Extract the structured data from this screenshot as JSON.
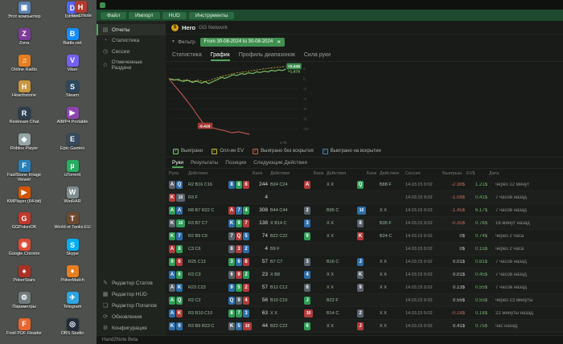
{
  "desktop": {
    "icons": [
      {
        "label": "Этот компьютер",
        "glyph": "▣",
        "color": "#5b84b1"
      },
      {
        "label": "Discord",
        "glyph": "D",
        "color": "#5865f2"
      },
      {
        "label": "Zona",
        "glyph": "Z",
        "color": "#7d3c98"
      },
      {
        "label": "Battle.net",
        "glyph": "B",
        "color": "#148eff"
      },
      {
        "label": "Online Radio",
        "glyph": "♫",
        "color": "#e67e22"
      },
      {
        "label": "Viber",
        "glyph": "V",
        "color": "#7360f2"
      },
      {
        "label": "Hearthstone",
        "glyph": "H",
        "color": "#c8963e"
      },
      {
        "label": "Steam",
        "glyph": "S",
        "color": "#2a475e"
      },
      {
        "label": "Restream Chat",
        "glyph": "R",
        "color": "#2c3e50"
      },
      {
        "label": "AIMP4 Portable",
        "glyph": "▶",
        "color": "#8e44ad"
      },
      {
        "label": "Roblox Player",
        "glyph": "◆",
        "color": "#95a5a6"
      },
      {
        "label": "Epic Games",
        "glyph": "E",
        "color": "#34495e"
      },
      {
        "label": "FastStone Image Viewer",
        "glyph": "F",
        "color": "#2980b9"
      },
      {
        "label": "uTorrent",
        "glyph": "µ",
        "color": "#27ae60"
      },
      {
        "label": "KMPlayer (64-bit)",
        "glyph": "▶",
        "color": "#d35400"
      },
      {
        "label": "WinRAR",
        "glyph": "W",
        "color": "#7f8c8d"
      },
      {
        "label": "GGPokerOK",
        "glyph": "G",
        "color": "#c0392b"
      },
      {
        "label": "World of Tanks EU",
        "glyph": "T",
        "color": "#6e4a2f"
      },
      {
        "label": "Google Chrome",
        "glyph": "◉",
        "color": "#dd4b39"
      },
      {
        "label": "Skype",
        "glyph": "S",
        "color": "#00aff0"
      },
      {
        "label": "PokerStars",
        "glyph": "♠",
        "color": "#a93226"
      },
      {
        "label": "PokerMatch",
        "glyph": "♦",
        "color": "#e67e22"
      },
      {
        "label": "Параметры",
        "glyph": "⚙",
        "color": "#707b7c"
      },
      {
        "label": "Telegram",
        "glyph": "✈",
        "color": "#2ca5e0"
      },
      {
        "label": "Foxit PDF Reader",
        "glyph": "F",
        "color": "#e8662d"
      },
      {
        "label": "OBS Studio",
        "glyph": "◎",
        "color": "#1f2b38"
      }
    ],
    "extra_icon": {
      "label": "Hand2Note",
      "glyph": "H",
      "color": "#b03a2e"
    }
  },
  "app": {
    "icons": {
      "coin": "$",
      "filter": "▼",
      "close": "✕",
      "check": "✓",
      "plus": "+"
    },
    "menu": {
      "items": [
        "Файл",
        "Импорт",
        "HUD",
        "Инструменты"
      ]
    },
    "sidebar": {
      "top_items": [
        {
          "label": "Отчеты",
          "icon": "▤",
          "active": true
        },
        {
          "label": "Статистика",
          "icon": "◔",
          "active": false
        },
        {
          "label": "Сессии",
          "icon": "◷",
          "active": false
        },
        {
          "label": "Отмеченные Раздачи",
          "icon": "✩",
          "active": false
        }
      ],
      "bottom_items": [
        {
          "label": "Редактор Статов",
          "icon": "✎",
          "active": false
        },
        {
          "label": "Редактор HUD",
          "icon": "▦",
          "active": false
        },
        {
          "label": "Редактор Попапов",
          "icon": "❏",
          "active": false
        },
        {
          "label": "Обновления",
          "icon": "⟳",
          "active": false
        },
        {
          "label": "Конфигурация",
          "icon": "⚙",
          "active": false
        }
      ]
    },
    "player": {
      "name": "Hero",
      "network": "GG Network"
    },
    "filter": {
      "button_label": "Фильтр",
      "date_range": "From 30-08-2024 to 30-08-2024"
    },
    "tabs": [
      {
        "label": "Статистика",
        "active": false
      },
      {
        "label": "График",
        "active": true
      },
      {
        "label": "Профиль диапазонов",
        "active": false
      },
      {
        "label": "Сила руки",
        "active": false
      }
    ],
    "chart": {
      "type": "line",
      "x_end_label": "2.7k",
      "y_ticks": [
        2,
        0,
        -2,
        -4,
        -6,
        -8,
        -10
      ],
      "ylim": [
        -13,
        3
      ],
      "series": [
        {
          "name": "Выиграно",
          "color": "#7ec36a",
          "dash": false,
          "width": 1.1,
          "points": [
            [
              0,
              0
            ],
            [
              4,
              -0.3
            ],
            [
              8,
              -0.15
            ],
            [
              12,
              -0.55
            ],
            [
              16,
              -0.35
            ],
            [
              20,
              -0.75
            ],
            [
              24,
              -0.5
            ],
            [
              28,
              -0.9
            ],
            [
              31,
              -0.6
            ],
            [
              34,
              -1.0
            ],
            [
              38,
              -0.55
            ],
            [
              42,
              -0.15
            ],
            [
              45,
              0.25
            ],
            [
              48,
              0.05
            ],
            [
              52,
              0.45
            ],
            [
              55,
              0.8
            ],
            [
              58,
              0.6
            ],
            [
              62,
              1.0
            ],
            [
              65,
              0.85
            ],
            [
              68,
              1.15
            ],
            [
              72,
              1.0
            ],
            [
              75,
              1.35
            ],
            [
              78,
              1.2
            ],
            [
              82,
              1.5
            ],
            [
              85,
              1.35
            ],
            [
              88,
              1.65
            ],
            [
              91,
              1.5
            ],
            [
              94,
              1.75
            ],
            [
              97,
              1.6
            ],
            [
              100,
              1.878
            ]
          ]
        },
        {
          "name": "Олл-ин EV",
          "color": "#c9b43a",
          "dash": true,
          "width": 0.8,
          "points": [
            [
              0,
              0
            ],
            [
              5,
              -0.2
            ],
            [
              10,
              -0.45
            ],
            [
              15,
              -0.2
            ],
            [
              20,
              -0.55
            ],
            [
              25,
              -0.3
            ],
            [
              30,
              -0.65
            ],
            [
              35,
              -0.35
            ],
            [
              40,
              0.05
            ],
            [
              45,
              0.45
            ],
            [
              50,
              0.7
            ],
            [
              55,
              1.0
            ],
            [
              60,
              1.2
            ],
            [
              65,
              1.35
            ],
            [
              70,
              1.55
            ],
            [
              75,
              1.7
            ],
            [
              80,
              1.9
            ],
            [
              85,
              2.05
            ],
            [
              90,
              2.2
            ],
            [
              95,
              2.3
            ],
            [
              100,
              2.445
            ]
          ]
        },
        {
          "name": "Выиграно без вскрытия",
          "color": "#c95a50",
          "dash": false,
          "width": 1,
          "points": [
            [
              0,
              0
            ],
            [
              4,
              -1.2
            ],
            [
              8,
              -2.3
            ],
            [
              12,
              -3.4
            ],
            [
              16,
              -4.6
            ],
            [
              20,
              -5.8
            ],
            [
              24,
              -7.2
            ],
            [
              28,
              -8.5
            ],
            [
              31,
              -9.428
            ],
            [
              36,
              -9.7
            ],
            [
              42,
              -10.1
            ],
            [
              48,
              -10.4
            ],
            [
              54,
              -10.8
            ],
            [
              60,
              -10.6
            ],
            [
              65,
              -10.9
            ],
            [
              69,
              -11.1
            ]
          ]
        }
      ],
      "badges": [
        {
          "text": "+2.445",
          "x": 100,
          "v": 2.445,
          "style": "pill",
          "bg": "#3f8f4f",
          "fg": "#ffffff"
        },
        {
          "text": "+1.878",
          "x": 100,
          "v": 1.45,
          "style": "text",
          "fg": "#7ec36a"
        },
        {
          "text": "-9.428",
          "x": 31,
          "v": -9.428,
          "style": "pill",
          "bg": "#a33a32",
          "fg": "#ffffff"
        }
      ]
    },
    "legend": [
      {
        "label": "Выиграно",
        "color": "#7ec36a"
      },
      {
        "label": "Олл-ин EV",
        "color": "#c9b43a"
      },
      {
        "label": "Выиграно без вскрытия",
        "color": "#c95a50"
      },
      {
        "label": "Выиграно на вскрытии",
        "color": "#4a7fb5"
      }
    ],
    "table": {
      "tabs": [
        {
          "label": "Руки",
          "active": true
        },
        {
          "label": "Результаты",
          "active": false
        },
        {
          "label": "Позиции",
          "active": false
        },
        {
          "label": "Следующие Действия",
          "active": false
        }
      ],
      "headers": [
        "Рука",
        "Действия",
        "",
        "Банк",
        "Действия",
        "",
        "Банк",
        "Действия",
        "",
        "Банк",
        "Действия",
        "Сессия",
        "Выигрыш",
        "EV$",
        "Дата"
      ],
      "rows": [
        {
          "hole": [
            "As",
            "Qd"
          ],
          "pre": "R2 B16 C16",
          "flop": [
            "8d",
            "8c",
            "6h"
          ],
          "pot1": "244",
          "facts": "B24 C24",
          "turn": "Ah",
          "pot2": "",
          "tacts": "X X",
          "river": "Qc",
          "pot3": "",
          "racts": "B88 F",
          "sess": "14.03.15 9:02",
          "win": "-2.38$",
          "ev": "1.21$",
          "ago": "через 12 минут"
        },
        {
          "hole": [
            "Kh",
            "10s"
          ],
          "pre": "R3 F",
          "flop": [],
          "pot1": "4",
          "facts": "",
          "turn": "",
          "pot2": "",
          "tacts": "",
          "river": "",
          "pot3": "",
          "racts": "",
          "sess": "14.03.15 9:02",
          "win": "-1.08$",
          "ev": "0.41$",
          "ago": "7 часов назад"
        },
        {
          "hole": [
            "Ac",
            "Ad"
          ],
          "pre": "R8 B7 R22 C",
          "flop": [
            "Ah",
            "7d",
            "4c"
          ],
          "pot1": "308",
          "facts": "B44 C44",
          "turn": "2s",
          "pot2": "",
          "tacts": "B95 C",
          "river": "10d",
          "pot3": "",
          "racts": "X X",
          "sess": "14.03.15 9:02",
          "win": "-1.45$",
          "ev": "6.17$",
          "ago": "7 часов назад"
        },
        {
          "hole": [
            "Ks",
            "10c"
          ],
          "pre": "R3 B7 C7",
          "flop": [
            "Kd",
            "9c",
            "7h"
          ],
          "pot1": "138",
          "facts": "X B14 C",
          "turn": "3d",
          "pot2": "",
          "tacts": "X X",
          "river": "8s",
          "pot3": "",
          "racts": "B35 F",
          "sess": "14.03.15 9:02",
          "win": "-0.35$",
          "ev": "0.76$",
          "ago": "16 минут назад"
        },
        {
          "hole": [
            "Kc",
            "7d"
          ],
          "pre": "R2 B9 C9",
          "flop": [
            "7s",
            "Qh",
            "5d"
          ],
          "pot1": "74",
          "facts": "B22 C22",
          "turn": "9c",
          "pot2": "",
          "tacts": "X X",
          "river": "Kh",
          "pot3": "",
          "racts": "B24 C",
          "sess": "14.03.15 9:02",
          "win": "0$",
          "ev": "0.74$",
          "ago": "через 2 часа"
        },
        {
          "hole": [
            "Ah",
            "8c"
          ],
          "pre": "C3 C6",
          "flop": [
            "8s",
            "3h",
            "2d"
          ],
          "pot1": "4",
          "facts": "B9 F",
          "turn": "",
          "pot2": "",
          "tacts": "",
          "river": "",
          "pot3": "",
          "racts": "",
          "sess": "14.03.15 9:02",
          "win": "0$",
          "ev": "0.15$",
          "ago": "через 2 часа"
        },
        {
          "hole": [
            "9c",
            "6h"
          ],
          "pre": "R25 C13",
          "flop": [
            "3c",
            "6d",
            "8h"
          ],
          "pot1": "57",
          "facts": "B7 C7",
          "turn": "3s",
          "pot2": "",
          "tacts": "B16 C",
          "river": "Jd",
          "pot3": "",
          "racts": "X X",
          "sess": "14.03.15 9:02",
          "win": "0.01$",
          "ev": "0.81$",
          "ago": "7 часов назад"
        },
        {
          "hole": [
            "Ad",
            "6c"
          ],
          "pre": "R3 C3",
          "flop": [
            "6s",
            "9h",
            "2c"
          ],
          "pot1": "23",
          "facts": "X B8",
          "turn": "4d",
          "pot2": "",
          "tacts": "X X",
          "river": "Ks",
          "pot3": "",
          "racts": "X X",
          "sess": "14.03.15 9:02",
          "win": "0.01$",
          "ev": "0.45$",
          "ago": "7 часов назад"
        },
        {
          "hole": [
            "As",
            "Kd"
          ],
          "pre": "R23 C23",
          "flop": [
            "9d",
            "5c",
            "2h"
          ],
          "pot1": "57",
          "facts": "B12 C12",
          "turn": "6s",
          "pot2": "",
          "tacts": "X X",
          "river": "9s",
          "pot3": "",
          "racts": "X X",
          "sess": "14.03.15 9:02",
          "win": "0.13$",
          "ev": "0.55$",
          "ago": "7 часов назад"
        },
        {
          "hole": [
            "Ac",
            "Qc"
          ],
          "pre": "R2 C2",
          "flop": [
            "Qd",
            "9s",
            "4h"
          ],
          "pot1": "56",
          "facts": "B10 C10",
          "turn": "Jc",
          "pot2": "",
          "tacts": "B22 F",
          "river": "",
          "pot3": "",
          "racts": "",
          "sess": "14.03.15 9:02",
          "win": "0.55$",
          "ev": "0.55$",
          "ago": "через 23 минуты"
        },
        {
          "hole": [
            "Ad",
            "Kh"
          ],
          "pre": "R3 R10 C10",
          "flop": [
            "8c",
            "7c",
            "3d"
          ],
          "pot1": "63",
          "facts": "X X",
          "turn": "10h",
          "pot2": "",
          "tacts": "B14 C",
          "river": "2s",
          "pot3": "",
          "racts": "X X",
          "sess": "14.03.15 9:02",
          "win": "-0.18$",
          "ev": "0.18$",
          "ago": "22 минуты назад"
        },
        {
          "hole": [
            "Kd",
            "9d"
          ],
          "pre": "R3 B9 R23 C",
          "flop": [
            "Ks",
            "5d",
            "10h"
          ],
          "pot1": "44",
          "facts": "B22 C22",
          "turn": "6c",
          "pot2": "",
          "tacts": "X X",
          "river": "Jh",
          "pot3": "",
          "racts": "X X",
          "sess": "14.03.15 9:02",
          "win": "0.41$",
          "ev": "0.75$",
          "ago": "час назад"
        }
      ]
    },
    "statusbar": {
      "text": "Hand2Note Beta"
    }
  }
}
